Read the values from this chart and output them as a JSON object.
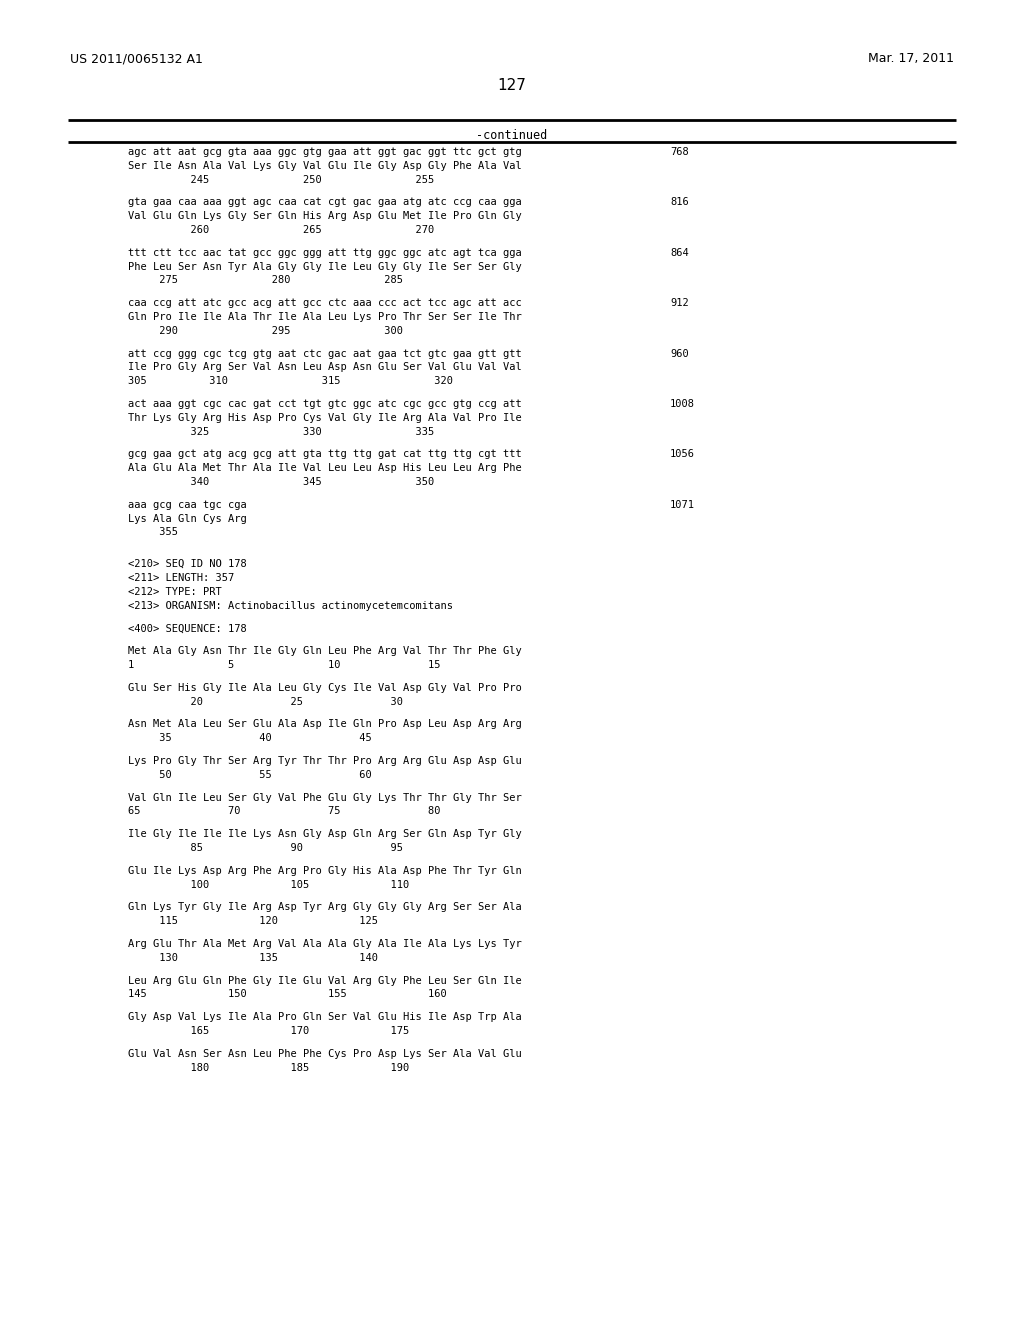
{
  "header_left": "US 2011/0065132 A1",
  "header_right": "Mar. 17, 2011",
  "page_number": "127",
  "continued_label": "-continued",
  "background_color": "#ffffff",
  "text_color": "#000000",
  "mono_font_size": 7.5,
  "header_font_size": 9.0,
  "page_num_font_size": 11,
  "content_lines": [
    {
      "type": "seq_line",
      "text": "agc att aat gcg gta aaa ggc gtg gaa att ggt gac ggt ttc gct gtg",
      "num": "768"
    },
    {
      "type": "aa_line",
      "text": "Ser Ile Asn Ala Val Lys Gly Val Glu Ile Gly Asp Gly Phe Ala Val"
    },
    {
      "type": "pos_line",
      "text": "          245               250               255"
    },
    {
      "type": "blank"
    },
    {
      "type": "seq_line",
      "text": "gta gaa caa aaa ggt agc caa cat cgt gac gaa atg atc ccg caa gga",
      "num": "816"
    },
    {
      "type": "aa_line",
      "text": "Val Glu Gln Lys Gly Ser Gln His Arg Asp Glu Met Ile Pro Gln Gly"
    },
    {
      "type": "pos_line",
      "text": "          260               265               270"
    },
    {
      "type": "blank"
    },
    {
      "type": "seq_line",
      "text": "ttt ctt tcc aac tat gcc ggc ggg att ttg ggc ggc atc agt tca gga",
      "num": "864"
    },
    {
      "type": "aa_line",
      "text": "Phe Leu Ser Asn Tyr Ala Gly Gly Ile Leu Gly Gly Ile Ser Ser Gly"
    },
    {
      "type": "pos_line",
      "text": "     275               280               285"
    },
    {
      "type": "blank"
    },
    {
      "type": "seq_line",
      "text": "caa ccg att atc gcc acg att gcc ctc aaa ccc act tcc agc att acc",
      "num": "912"
    },
    {
      "type": "aa_line",
      "text": "Gln Pro Ile Ile Ala Thr Ile Ala Leu Lys Pro Thr Ser Ser Ile Thr"
    },
    {
      "type": "pos_line",
      "text": "     290               295               300"
    },
    {
      "type": "blank"
    },
    {
      "type": "seq_line",
      "text": "att ccg ggg cgc tcg gtg aat ctc gac aat gaa tct gtc gaa gtt gtt",
      "num": "960"
    },
    {
      "type": "aa_line",
      "text": "Ile Pro Gly Arg Ser Val Asn Leu Asp Asn Glu Ser Val Glu Val Val"
    },
    {
      "type": "pos_line",
      "text": "305          310               315               320"
    },
    {
      "type": "blank"
    },
    {
      "type": "seq_line",
      "text": "act aaa ggt cgc cac gat cct tgt gtc ggc atc cgc gcc gtg ccg att",
      "num": "1008"
    },
    {
      "type": "aa_line",
      "text": "Thr Lys Gly Arg His Asp Pro Cys Val Gly Ile Arg Ala Val Pro Ile"
    },
    {
      "type": "pos_line",
      "text": "          325               330               335"
    },
    {
      "type": "blank"
    },
    {
      "type": "seq_line",
      "text": "gcg gaa gct atg acg gcg att gta ttg ttg gat cat ttg ttg cgt ttt",
      "num": "1056"
    },
    {
      "type": "aa_line",
      "text": "Ala Glu Ala Met Thr Ala Ile Val Leu Leu Asp His Leu Leu Arg Phe"
    },
    {
      "type": "pos_line",
      "text": "          340               345               350"
    },
    {
      "type": "blank"
    },
    {
      "type": "seq_line",
      "text": "aaa gcg caa tgc cga",
      "num": "1071"
    },
    {
      "type": "aa_line",
      "text": "Lys Ala Gln Cys Arg"
    },
    {
      "type": "pos_line",
      "text": "     355"
    },
    {
      "type": "blank"
    },
    {
      "type": "blank"
    },
    {
      "type": "meta_line",
      "text": "<210> SEQ ID NO 178"
    },
    {
      "type": "meta_line",
      "text": "<211> LENGTH: 357"
    },
    {
      "type": "meta_line",
      "text": "<212> TYPE: PRT"
    },
    {
      "type": "meta_line",
      "text": "<213> ORGANISM: Actinobacillus actinomycetemcomitans"
    },
    {
      "type": "blank"
    },
    {
      "type": "meta_line",
      "text": "<400> SEQUENCE: 178"
    },
    {
      "type": "blank"
    },
    {
      "type": "aa_line",
      "text": "Met Ala Gly Asn Thr Ile Gly Gln Leu Phe Arg Val Thr Thr Phe Gly"
    },
    {
      "type": "pos_line",
      "text": "1               5               10              15"
    },
    {
      "type": "blank"
    },
    {
      "type": "aa_line",
      "text": "Glu Ser His Gly Ile Ala Leu Gly Cys Ile Val Asp Gly Val Pro Pro"
    },
    {
      "type": "pos_line",
      "text": "          20              25              30"
    },
    {
      "type": "blank"
    },
    {
      "type": "aa_line",
      "text": "Asn Met Ala Leu Ser Glu Ala Asp Ile Gln Pro Asp Leu Asp Arg Arg"
    },
    {
      "type": "pos_line",
      "text": "     35              40              45"
    },
    {
      "type": "blank"
    },
    {
      "type": "aa_line",
      "text": "Lys Pro Gly Thr Ser Arg Tyr Thr Thr Pro Arg Arg Glu Asp Asp Glu"
    },
    {
      "type": "pos_line",
      "text": "     50              55              60"
    },
    {
      "type": "blank"
    },
    {
      "type": "aa_line",
      "text": "Val Gln Ile Leu Ser Gly Val Phe Glu Gly Lys Thr Thr Gly Thr Ser"
    },
    {
      "type": "pos_line",
      "text": "65              70              75              80"
    },
    {
      "type": "blank"
    },
    {
      "type": "aa_line",
      "text": "Ile Gly Ile Ile Ile Lys Asn Gly Asp Gln Arg Ser Gln Asp Tyr Gly"
    },
    {
      "type": "pos_line",
      "text": "          85              90              95"
    },
    {
      "type": "blank"
    },
    {
      "type": "aa_line",
      "text": "Glu Ile Lys Asp Arg Phe Arg Pro Gly His Ala Asp Phe Thr Tyr Gln"
    },
    {
      "type": "pos_line",
      "text": "          100             105             110"
    },
    {
      "type": "blank"
    },
    {
      "type": "aa_line",
      "text": "Gln Lys Tyr Gly Ile Arg Asp Tyr Arg Gly Gly Gly Arg Ser Ser Ala"
    },
    {
      "type": "pos_line",
      "text": "     115             120             125"
    },
    {
      "type": "blank"
    },
    {
      "type": "aa_line",
      "text": "Arg Glu Thr Ala Met Arg Val Ala Ala Gly Ala Ile Ala Lys Lys Tyr"
    },
    {
      "type": "pos_line",
      "text": "     130             135             140"
    },
    {
      "type": "blank"
    },
    {
      "type": "aa_line",
      "text": "Leu Arg Glu Gln Phe Gly Ile Glu Val Arg Gly Phe Leu Ser Gln Ile"
    },
    {
      "type": "pos_line",
      "text": "145             150             155             160"
    },
    {
      "type": "blank"
    },
    {
      "type": "aa_line",
      "text": "Gly Asp Val Lys Ile Ala Pro Gln Ser Val Glu His Ile Asp Trp Ala"
    },
    {
      "type": "pos_line",
      "text": "          165             170             175"
    },
    {
      "type": "blank"
    },
    {
      "type": "aa_line",
      "text": "Glu Val Asn Ser Asn Leu Phe Phe Cys Pro Asp Lys Ser Ala Val Glu"
    },
    {
      "type": "pos_line",
      "text": "          180             185             190"
    }
  ]
}
